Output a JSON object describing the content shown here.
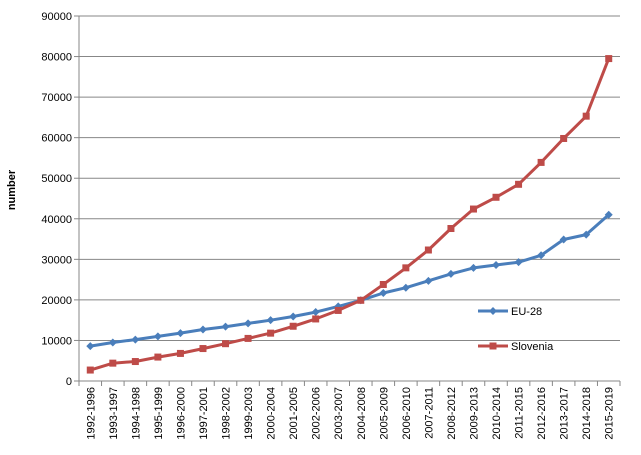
{
  "chart_data": {
    "type": "line",
    "title": "",
    "xlabel": "",
    "ylabel": "number",
    "ylim": [
      0,
      90000
    ],
    "y_ticks": [
      "0",
      "10000",
      "20000",
      "30000",
      "40000",
      "50000",
      "60000",
      "70000",
      "80000",
      "90000"
    ],
    "grid": "horizontal",
    "legend_position": "right",
    "categories": [
      "1992-1996",
      "1993-1997",
      "1994-1998",
      "1995-1999",
      "1996-2000",
      "1997-2001",
      "1998-2002",
      "1999-2003",
      "2000-2004",
      "2001-2005",
      "2002-2006",
      "2003-2007",
      "2004-2008",
      "2005-2009",
      "2006-2010",
      "2007-2011",
      "2008-2012",
      "2009-2013",
      "2010-2014",
      "2011-2015",
      "2012-2016",
      "2013-2017",
      "2014-2018",
      "2015-2019"
    ],
    "series": [
      {
        "name": "EU-28",
        "color": "#4a7ebb",
        "marker": "diamond",
        "values": [
          8600,
          9500,
          10200,
          11000,
          11800,
          12700,
          13400,
          14200,
          15000,
          15900,
          17000,
          18400,
          19900,
          21700,
          23000,
          24700,
          26400,
          27900,
          28600,
          29300,
          31000,
          34900,
          36100,
          41000
        ]
      },
      {
        "name": "Slovenia",
        "color": "#be4b48",
        "marker": "square",
        "values": [
          2700,
          4400,
          4800,
          5900,
          6800,
          8000,
          9200,
          10500,
          11800,
          13500,
          15300,
          17400,
          19900,
          23800,
          27900,
          32300,
          37600,
          42400,
          45300,
          48500,
          53900,
          59800,
          65300,
          79500
        ]
      }
    ]
  }
}
